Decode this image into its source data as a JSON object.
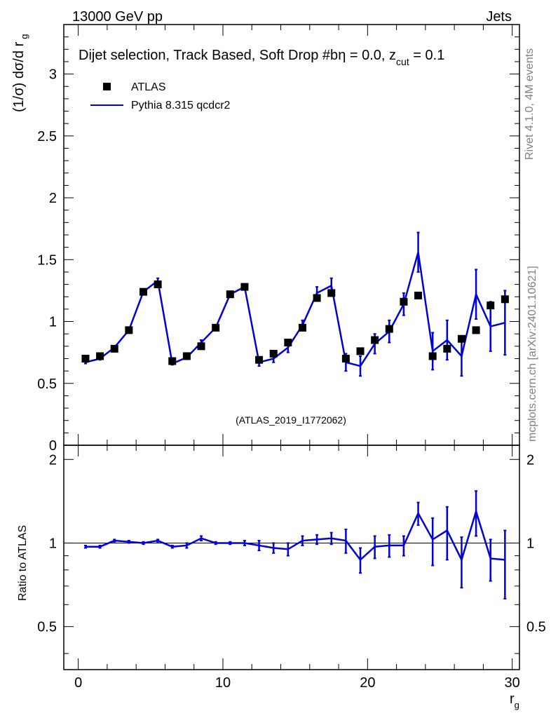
{
  "header": {
    "left": "13000 GeV pp",
    "right": "Jets"
  },
  "side_labels": {
    "rivet": "Rivet 4.1.0,  4M events",
    "mcplots": "mcplots.cern.ch [arXiv:2401.10621]"
  },
  "chart_data": [
    {
      "type": "scatter",
      "panel": "main",
      "title": "Dijet selection, Track Based, Soft Drop #b",
      "title_suffix": "η = 0.0, z",
      "title_sub": "cut",
      "title_end": " = 0.1",
      "ylabel": "(1/σ) dσ/d r",
      "ylabel_sub": "g",
      "xlim": [
        -1,
        30.5
      ],
      "ylim": [
        0,
        3.4
      ],
      "yticks": [
        0,
        0.5,
        1,
        1.5,
        2,
        2.5,
        3
      ],
      "ytick_labels": [
        "0",
        "0.5",
        "1",
        "1.5",
        "2",
        "2.5",
        "3"
      ],
      "watermark": "(ATLAS_2019_I1772062)",
      "legend": [
        {
          "name": "ATLAS",
          "marker": "square",
          "color": "#000000"
        },
        {
          "name": "Pythia 8.315 qcdcr2",
          "marker": "line",
          "color": "#0000dd"
        }
      ],
      "x": [
        0.5,
        1.5,
        2.5,
        3.5,
        4.5,
        5.5,
        6.5,
        7.5,
        8.5,
        9.5,
        10.5,
        11.5,
        12.5,
        13.5,
        14.5,
        15.5,
        16.5,
        17.5,
        18.5,
        19.5,
        20.5,
        21.5,
        22.5,
        23.5,
        24.5,
        25.5,
        26.5,
        27.5,
        28.5,
        29.5
      ],
      "series": [
        {
          "name": "ATLAS",
          "values": [
            0.7,
            0.72,
            0.78,
            0.93,
            1.24,
            1.3,
            0.68,
            0.72,
            0.8,
            0.95,
            1.22,
            1.28,
            0.69,
            0.74,
            0.83,
            0.95,
            1.19,
            1.23,
            0.7,
            0.76,
            0.85,
            0.94,
            1.16,
            1.21,
            0.72,
            0.78,
            0.86,
            0.93,
            1.13,
            1.18
          ]
        },
        {
          "name": "Pythia 8.315 qcdcr2",
          "values": [
            0.67,
            0.7,
            0.79,
            0.93,
            1.24,
            1.33,
            0.66,
            0.71,
            0.83,
            0.95,
            1.22,
            1.28,
            0.67,
            0.7,
            0.79,
            0.97,
            1.23,
            1.29,
            0.67,
            0.64,
            0.82,
            0.92,
            1.14,
            1.56,
            0.76,
            0.85,
            0.72,
            1.22,
            0.96,
            0.99
          ],
          "err": [
            0.01,
            0.01,
            0.01,
            0.01,
            0.01,
            0.02,
            0.01,
            0.01,
            0.02,
            0.02,
            0.02,
            0.02,
            0.03,
            0.03,
            0.04,
            0.04,
            0.05,
            0.06,
            0.07,
            0.08,
            0.08,
            0.09,
            0.09,
            0.16,
            0.15,
            0.16,
            0.16,
            0.2,
            0.2,
            0.26
          ]
        }
      ]
    },
    {
      "type": "line",
      "panel": "ratio",
      "ylabel": "Ratio to ATLAS",
      "xlabel": "r",
      "xlabel_sub": "g",
      "xlim": [
        -1,
        30.5
      ],
      "ylim": [
        0.35,
        2.25
      ],
      "xticks": [
        0,
        10,
        20,
        30
      ],
      "xtick_labels": [
        "0",
        "10",
        "20",
        "30"
      ],
      "yticks": [
        0.5,
        1,
        2
      ],
      "ytick_labels": [
        "0.5",
        "1",
        "2"
      ],
      "reference": 1,
      "x": [
        0.5,
        1.5,
        2.5,
        3.5,
        4.5,
        5.5,
        6.5,
        7.5,
        8.5,
        9.5,
        10.5,
        11.5,
        12.5,
        13.5,
        14.5,
        15.5,
        16.5,
        17.5,
        18.5,
        19.5,
        20.5,
        21.5,
        22.5,
        23.5,
        24.5,
        25.5,
        26.5,
        27.5,
        28.5,
        29.5
      ],
      "series": [
        {
          "name": "Pythia 8.315 qcdcr2",
          "values": [
            0.97,
            0.97,
            1.02,
            1.01,
            1.0,
            1.02,
            0.97,
            0.98,
            1.04,
            1.0,
            1.0,
            1.0,
            0.98,
            0.96,
            0.95,
            1.02,
            1.03,
            1.04,
            1.02,
            0.87,
            0.97,
            0.98,
            0.98,
            1.28,
            1.03,
            1.11,
            0.87,
            1.3,
            0.88,
            0.87
          ],
          "err": [
            0.01,
            0.01,
            0.01,
            0.01,
            0.01,
            0.01,
            0.01,
            0.02,
            0.02,
            0.01,
            0.01,
            0.02,
            0.04,
            0.04,
            0.05,
            0.04,
            0.04,
            0.05,
            0.1,
            0.09,
            0.09,
            0.09,
            0.08,
            0.12,
            0.2,
            0.24,
            0.18,
            0.24,
            0.15,
            0.24
          ]
        }
      ]
    }
  ]
}
